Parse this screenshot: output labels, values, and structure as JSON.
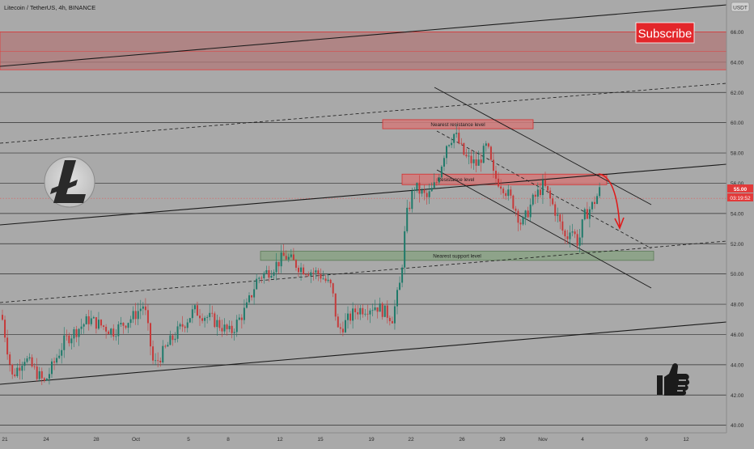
{
  "header": {
    "symbol_line": "Litecoin / TetherUS, 4h, BINANCE",
    "currency_badge": "USDT"
  },
  "price_marker": {
    "price": "55.00",
    "countdown": "03:19:52"
  },
  "subscribe_label": "Subscribe",
  "zone_labels": {
    "nearest_resistance": "Nearest resistance level",
    "resistance": "Resistance level",
    "nearest_support": "Nearest support level"
  },
  "icons": {
    "logo": "litecoin-logo-icon",
    "thumb": "thumbs-up-icon"
  },
  "colors": {
    "background": "#a9a9a9",
    "up_candle": "#1f7a6a",
    "down_candle": "#c63a3a",
    "resistance_zone": "#d46a6a",
    "support_zone": "#7f9a7a",
    "price_line": "#e05a5a",
    "badge": "#e23a3a"
  },
  "chart_data": {
    "type": "candlestick",
    "title": "Litecoin / TetherUS, 4h, BINANCE",
    "y_ticks": [
      "40.00",
      "42.00",
      "44.00",
      "46.00",
      "48.00",
      "50.00",
      "52.00",
      "54.00",
      "56.00",
      "58.00",
      "60.00",
      "62.00",
      "64.00",
      "66.00"
    ],
    "x_ticks": [
      "21",
      "24",
      "28",
      "Oct",
      "5",
      "8",
      "12",
      "15",
      "19",
      "22",
      "26",
      "29",
      "Nov",
      "4",
      "9",
      "12"
    ],
    "ylim": [
      39.5,
      67.5
    ],
    "current_price": 55.0,
    "horizontal_levels": [
      40,
      42,
      44,
      46,
      48,
      50,
      52,
      54,
      56,
      58,
      60,
      62,
      64,
      66
    ],
    "resistance_band": [
      63.5,
      66.0
    ],
    "zones": [
      {
        "label": "Nearest resistance level",
        "low": 59.6,
        "high": 60.2,
        "x_from": "Oct 23",
        "x_to": "Oct 30"
      },
      {
        "label": "Resistance level",
        "low": 55.9,
        "high": 56.6,
        "x_from": "Oct 22",
        "x_to": "Nov 5"
      },
      {
        "label": "Nearest support level",
        "low": 50.9,
        "high": 51.5,
        "x_from": "Oct 10",
        "x_to": "Nov 7"
      }
    ]
  }
}
